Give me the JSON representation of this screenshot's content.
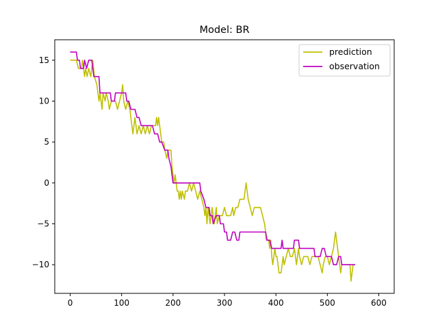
{
  "chart_data": {
    "type": "line",
    "title": "Model: BR",
    "xlabel": "",
    "ylabel": "",
    "xlim": [
      -30,
      630
    ],
    "ylim": [
      -13.5,
      17.5
    ],
    "xticks": [
      0,
      100,
      200,
      300,
      400,
      500,
      600
    ],
    "yticks": [
      15,
      10,
      5,
      0,
      -5,
      -10
    ],
    "grid": false,
    "legend": "top-right",
    "series": [
      {
        "name": "prediction",
        "color": "#bfbf00",
        "points": [
          [
            0,
            15
          ],
          [
            12,
            15
          ],
          [
            16,
            14
          ],
          [
            22,
            14
          ],
          [
            24,
            15
          ],
          [
            26,
            14
          ],
          [
            28,
            13
          ],
          [
            30,
            14
          ],
          [
            33,
            13
          ],
          [
            36,
            14
          ],
          [
            40,
            13
          ],
          [
            44,
            15
          ],
          [
            47,
            13
          ],
          [
            52,
            12
          ],
          [
            54,
            11
          ],
          [
            56,
            10
          ],
          [
            58,
            11
          ],
          [
            60,
            10
          ],
          [
            62,
            9
          ],
          [
            64,
            11
          ],
          [
            68,
            10
          ],
          [
            70,
            11
          ],
          [
            74,
            10
          ],
          [
            76,
            9
          ],
          [
            80,
            10
          ],
          [
            88,
            10
          ],
          [
            92,
            9
          ],
          [
            96,
            10
          ],
          [
            100,
            11
          ],
          [
            102,
            12
          ],
          [
            104,
            10
          ],
          [
            108,
            9
          ],
          [
            112,
            10
          ],
          [
            116,
            9
          ],
          [
            118,
            8
          ],
          [
            120,
            7
          ],
          [
            122,
            6
          ],
          [
            124,
            7
          ],
          [
            126,
            8
          ],
          [
            128,
            7
          ],
          [
            130,
            6
          ],
          [
            134,
            7
          ],
          [
            138,
            6
          ],
          [
            142,
            7
          ],
          [
            146,
            6
          ],
          [
            150,
            7
          ],
          [
            154,
            6
          ],
          [
            158,
            7
          ],
          [
            162,
            7
          ],
          [
            166,
            7
          ],
          [
            168,
            8
          ],
          [
            170,
            7
          ],
          [
            172,
            8
          ],
          [
            174,
            7
          ],
          [
            176,
            6
          ],
          [
            178,
            5
          ],
          [
            182,
            5
          ],
          [
            184,
            4
          ],
          [
            188,
            3
          ],
          [
            190,
            4
          ],
          [
            196,
            4
          ],
          [
            198,
            2
          ],
          [
            200,
            1
          ],
          [
            202,
            0
          ],
          [
            204,
            1
          ],
          [
            206,
            0
          ],
          [
            208,
            -1
          ],
          [
            210,
            -1
          ],
          [
            212,
            -2
          ],
          [
            214,
            -1
          ],
          [
            216,
            -2
          ],
          [
            218,
            -1
          ],
          [
            222,
            -2
          ],
          [
            224,
            -1
          ],
          [
            228,
            -1
          ],
          [
            232,
            0
          ],
          [
            236,
            -1
          ],
          [
            240,
            0
          ],
          [
            244,
            -1
          ],
          [
            248,
            -2
          ],
          [
            252,
            -1
          ],
          [
            256,
            -2
          ],
          [
            260,
            -3
          ],
          [
            262,
            -4
          ],
          [
            264,
            -3
          ],
          [
            266,
            -5
          ],
          [
            268,
            -3
          ],
          [
            270,
            -4
          ],
          [
            272,
            -5
          ],
          [
            274,
            -4
          ],
          [
            276,
            -3
          ],
          [
            278,
            -4
          ],
          [
            280,
            -5
          ],
          [
            282,
            -4
          ],
          [
            284,
            -3
          ],
          [
            286,
            -5
          ],
          [
            290,
            -4
          ],
          [
            296,
            -4
          ],
          [
            300,
            -3
          ],
          [
            304,
            -4
          ],
          [
            308,
            -4
          ],
          [
            312,
            -4
          ],
          [
            316,
            -3
          ],
          [
            318,
            -4
          ],
          [
            322,
            -3
          ],
          [
            326,
            -3
          ],
          [
            330,
            -2
          ],
          [
            338,
            -2
          ],
          [
            340,
            -1
          ],
          [
            342,
            0
          ],
          [
            344,
            -1
          ],
          [
            346,
            -2
          ],
          [
            350,
            -3
          ],
          [
            354,
            -4
          ],
          [
            358,
            -3
          ],
          [
            362,
            -3
          ],
          [
            370,
            -3
          ],
          [
            374,
            -4
          ],
          [
            378,
            -5
          ],
          [
            380,
            -6
          ],
          [
            384,
            -7
          ],
          [
            386,
            -7
          ],
          [
            388,
            -8
          ],
          [
            390,
            -7
          ],
          [
            392,
            -9
          ],
          [
            394,
            -10
          ],
          [
            396,
            -9
          ],
          [
            398,
            -8
          ],
          [
            400,
            -9
          ],
          [
            402,
            -9
          ],
          [
            404,
            -10
          ],
          [
            406,
            -11
          ],
          [
            408,
            -11
          ],
          [
            410,
            -11
          ],
          [
            412,
            -10
          ],
          [
            414,
            -9
          ],
          [
            416,
            -10
          ],
          [
            420,
            -9
          ],
          [
            424,
            -8
          ],
          [
            428,
            -9
          ],
          [
            432,
            -9
          ],
          [
            436,
            -8
          ],
          [
            438,
            -9
          ],
          [
            440,
            -10
          ],
          [
            444,
            -8
          ],
          [
            446,
            -9
          ],
          [
            450,
            -10
          ],
          [
            454,
            -9
          ],
          [
            458,
            -9
          ],
          [
            462,
            -9
          ],
          [
            466,
            -10
          ],
          [
            470,
            -9
          ],
          [
            474,
            -9
          ],
          [
            478,
            -9
          ],
          [
            482,
            -9
          ],
          [
            486,
            -10
          ],
          [
            490,
            -11
          ],
          [
            492,
            -10
          ],
          [
            496,
            -9
          ],
          [
            500,
            -9
          ],
          [
            504,
            -10
          ],
          [
            508,
            -9
          ],
          [
            512,
            -8
          ],
          [
            514,
            -7
          ],
          [
            516,
            -6
          ],
          [
            518,
            -7
          ],
          [
            520,
            -8
          ],
          [
            522,
            -9
          ],
          [
            524,
            -10
          ],
          [
            526,
            -11
          ],
          [
            528,
            -10
          ],
          [
            532,
            -10
          ],
          [
            540,
            -10
          ],
          [
            544,
            -10
          ],
          [
            546,
            -12
          ],
          [
            548,
            -11
          ],
          [
            550,
            -10
          ],
          [
            552,
            -10
          ],
          [
            554,
            -10
          ]
        ]
      },
      {
        "name": "observation",
        "color": "#bf00bf",
        "points": [
          [
            0,
            16
          ],
          [
            12,
            16
          ],
          [
            14,
            15
          ],
          [
            18,
            15
          ],
          [
            20,
            14
          ],
          [
            26,
            14
          ],
          [
            28,
            15
          ],
          [
            32,
            14
          ],
          [
            36,
            15
          ],
          [
            42,
            15
          ],
          [
            44,
            14
          ],
          [
            46,
            13
          ],
          [
            56,
            13
          ],
          [
            58,
            11
          ],
          [
            60,
            11
          ],
          [
            70,
            11
          ],
          [
            72,
            11
          ],
          [
            78,
            11
          ],
          [
            80,
            10
          ],
          [
            86,
            10
          ],
          [
            88,
            11
          ],
          [
            90,
            11
          ],
          [
            96,
            11
          ],
          [
            100,
            11
          ],
          [
            108,
            11
          ],
          [
            110,
            10
          ],
          [
            114,
            10
          ],
          [
            118,
            9
          ],
          [
            120,
            9
          ],
          [
            126,
            9
          ],
          [
            130,
            8
          ],
          [
            134,
            8
          ],
          [
            138,
            7
          ],
          [
            144,
            7
          ],
          [
            146,
            7
          ],
          [
            154,
            7
          ],
          [
            160,
            7
          ],
          [
            164,
            6
          ],
          [
            170,
            6
          ],
          [
            174,
            5
          ],
          [
            178,
            5
          ],
          [
            184,
            4
          ],
          [
            190,
            4
          ],
          [
            192,
            3
          ],
          [
            196,
            2
          ],
          [
            198,
            1
          ],
          [
            200,
            0
          ],
          [
            206,
            0
          ],
          [
            208,
            0
          ],
          [
            216,
            0
          ],
          [
            224,
            0
          ],
          [
            230,
            0
          ],
          [
            236,
            0
          ],
          [
            240,
            0
          ],
          [
            248,
            0
          ],
          [
            252,
            0
          ],
          [
            254,
            -1
          ],
          [
            260,
            -2
          ],
          [
            264,
            -3
          ],
          [
            270,
            -3
          ],
          [
            272,
            -4
          ],
          [
            276,
            -4
          ],
          [
            278,
            -5
          ],
          [
            284,
            -4
          ],
          [
            290,
            -4
          ],
          [
            292,
            -5
          ],
          [
            298,
            -5
          ],
          [
            300,
            -6
          ],
          [
            304,
            -6
          ],
          [
            306,
            -7
          ],
          [
            312,
            -7
          ],
          [
            316,
            -6
          ],
          [
            320,
            -6
          ],
          [
            324,
            -7
          ],
          [
            328,
            -7
          ],
          [
            330,
            -6
          ],
          [
            336,
            -6
          ],
          [
            342,
            -6
          ],
          [
            350,
            -6
          ],
          [
            360,
            -6
          ],
          [
            366,
            -6
          ],
          [
            370,
            -6
          ],
          [
            374,
            -6
          ],
          [
            380,
            -6
          ],
          [
            382,
            -7
          ],
          [
            388,
            -7
          ],
          [
            392,
            -8
          ],
          [
            396,
            -8
          ],
          [
            398,
            -8
          ],
          [
            406,
            -8
          ],
          [
            410,
            -8
          ],
          [
            412,
            -7
          ],
          [
            414,
            -8
          ],
          [
            418,
            -8
          ],
          [
            426,
            -8
          ],
          [
            434,
            -8
          ],
          [
            436,
            -7
          ],
          [
            440,
            -7
          ],
          [
            444,
            -7
          ],
          [
            446,
            -8
          ],
          [
            452,
            -8
          ],
          [
            458,
            -8
          ],
          [
            464,
            -8
          ],
          [
            470,
            -8
          ],
          [
            474,
            -8
          ],
          [
            476,
            -9
          ],
          [
            482,
            -9
          ],
          [
            486,
            -9
          ],
          [
            490,
            -8
          ],
          [
            494,
            -8
          ],
          [
            498,
            -9
          ],
          [
            504,
            -9
          ],
          [
            508,
            -9
          ],
          [
            512,
            -10
          ],
          [
            518,
            -10
          ],
          [
            522,
            -9
          ],
          [
            526,
            -9
          ],
          [
            528,
            -10
          ],
          [
            532,
            -10
          ],
          [
            540,
            -10
          ],
          [
            546,
            -10
          ],
          [
            550,
            -10
          ],
          [
            554,
            -10
          ]
        ]
      }
    ]
  }
}
